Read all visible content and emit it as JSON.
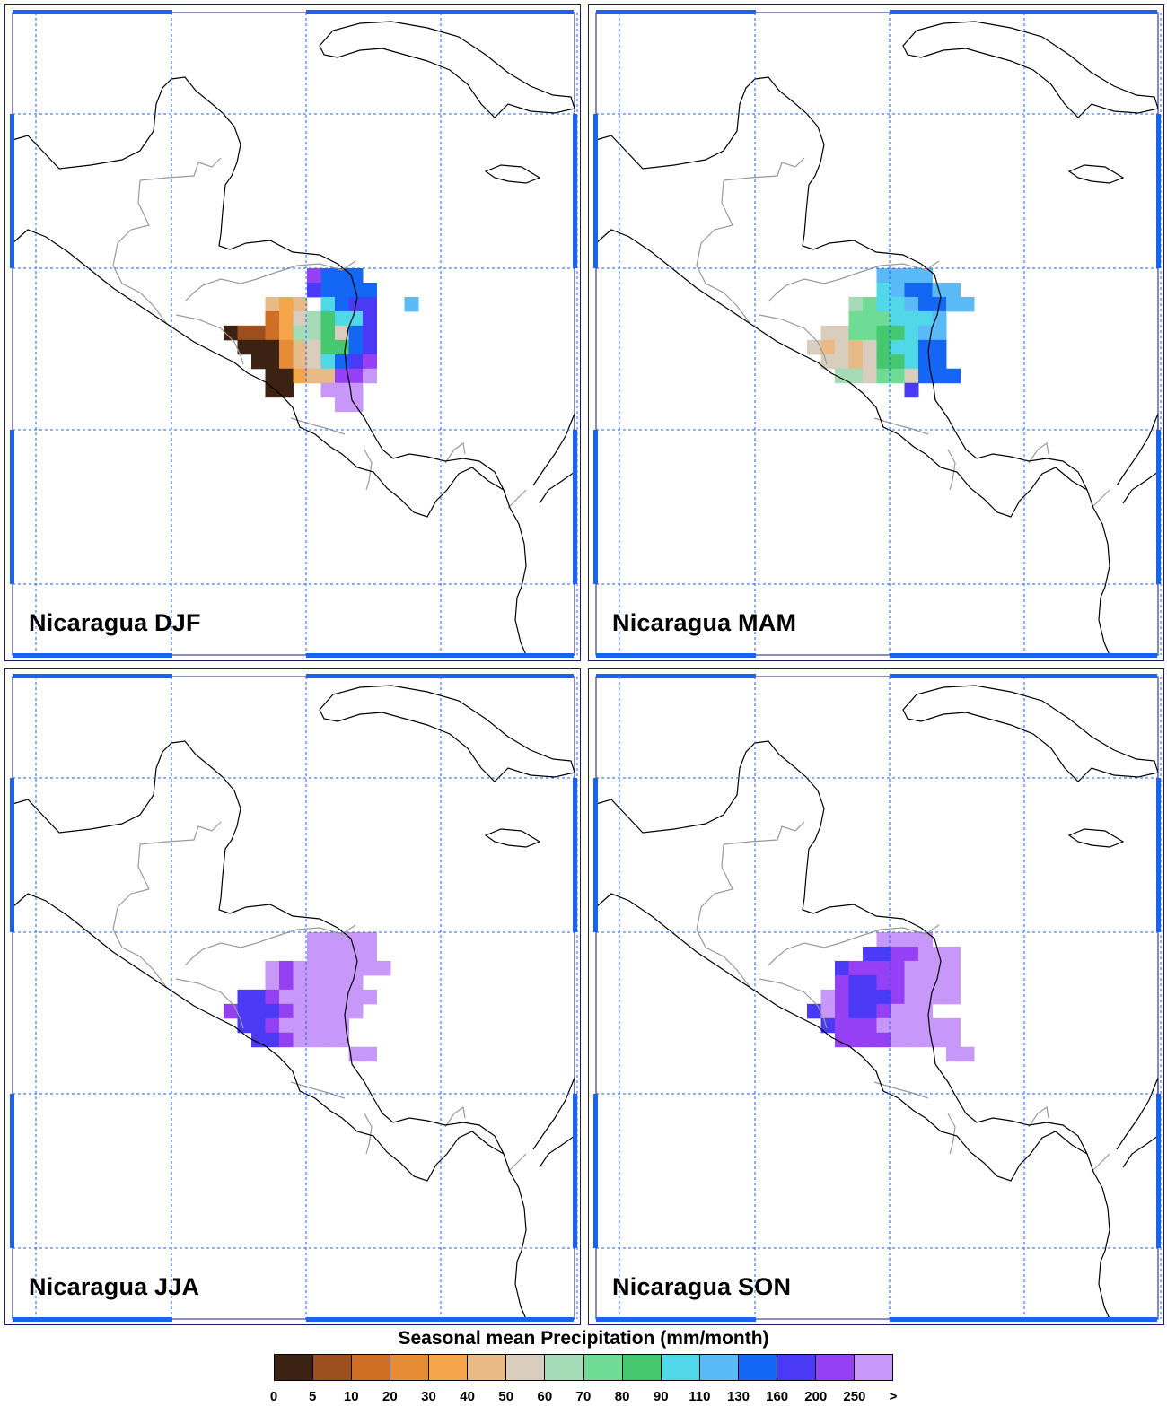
{
  "panels": [
    {
      "title": "Nicaragua DJF",
      "key": "djf"
    },
    {
      "title": "Nicaragua MAM",
      "key": "mam"
    },
    {
      "title": "Nicaragua JJA",
      "key": "jja"
    },
    {
      "title": "Nicaragua SON",
      "key": "son"
    }
  ],
  "colorbar": {
    "title": "Seasonal mean Precipitation (mm/month)",
    "labels": [
      "0",
      "5",
      "10",
      "20",
      "30",
      "40",
      "50",
      "60",
      "70",
      "80",
      "90",
      "110",
      "130",
      "160",
      "200",
      "250",
      ">"
    ],
    "colors": [
      "#3b2212",
      "#9b4f1c",
      "#cf6f26",
      "#e58c34",
      "#f6a64a",
      "#e8bb86",
      "#d9cdbd",
      "#a6dbb7",
      "#6fdc96",
      "#45c870",
      "#50d8e8",
      "#5abaf8",
      "#1367f4",
      "#4a3af5",
      "#9640f5",
      "#c797f9"
    ]
  },
  "colors": {
    "grid": "#1a63f0",
    "frame_accent": "#1a63f0",
    "coast": "#000000",
    "border": "#9a9a9a"
  }
}
